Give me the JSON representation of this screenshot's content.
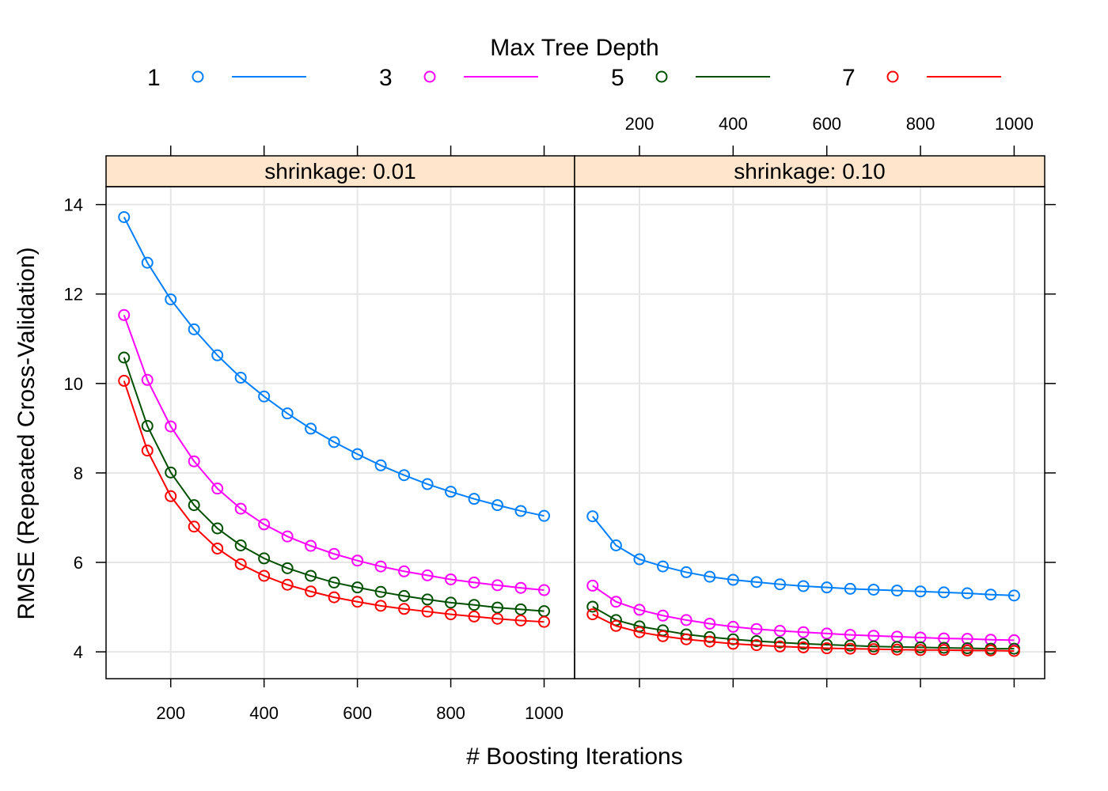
{
  "chart_data": {
    "type": "line",
    "xlabel": "# Boosting Iterations",
    "ylabel": "RMSE (Repeated Cross-Validation)",
    "legend_title": "Max Tree Depth",
    "legend_position": "top",
    "grid": true,
    "xlim": [
      75,
      1050
    ],
    "ylim": [
      3.4,
      14.4
    ],
    "x_ticks": [
      200,
      400,
      600,
      800,
      1000
    ],
    "y_ticks": [
      4,
      6,
      8,
      10,
      12,
      14
    ],
    "x": [
      100,
      150,
      200,
      250,
      300,
      350,
      400,
      450,
      500,
      550,
      600,
      650,
      700,
      750,
      800,
      850,
      900,
      950,
      1000
    ],
    "series_colors": {
      "1": "#0080ff",
      "3": "#ff00ff",
      "5": "#005000",
      "7": "#ff0000"
    },
    "panels": [
      {
        "label": "shrinkage: 0.01",
        "series": [
          {
            "name": "1",
            "values": [
              13.72,
              12.7,
              11.88,
              11.21,
              10.63,
              10.13,
              9.71,
              9.33,
              8.99,
              8.69,
              8.42,
              8.17,
              7.95,
              7.75,
              7.58,
              7.42,
              7.28,
              7.15,
              7.04
            ]
          },
          {
            "name": "3",
            "values": [
              11.53,
              10.08,
              9.04,
              8.26,
              7.65,
              7.2,
              6.85,
              6.58,
              6.37,
              6.19,
              6.04,
              5.91,
              5.8,
              5.71,
              5.62,
              5.55,
              5.49,
              5.43,
              5.38
            ]
          },
          {
            "name": "5",
            "values": [
              10.58,
              9.05,
              8.01,
              7.28,
              6.76,
              6.38,
              6.09,
              5.87,
              5.7,
              5.55,
              5.44,
              5.34,
              5.25,
              5.17,
              5.1,
              5.05,
              4.99,
              4.95,
              4.91
            ]
          },
          {
            "name": "7",
            "values": [
              10.06,
              8.5,
              7.48,
              6.8,
              6.31,
              5.96,
              5.7,
              5.5,
              5.35,
              5.22,
              5.12,
              5.03,
              4.96,
              4.9,
              4.84,
              4.79,
              4.74,
              4.7,
              4.67
            ]
          }
        ]
      },
      {
        "label": "shrinkage: 0.10",
        "series": [
          {
            "name": "1",
            "values": [
              7.03,
              6.38,
              6.07,
              5.91,
              5.78,
              5.68,
              5.61,
              5.56,
              5.51,
              5.47,
              5.44,
              5.41,
              5.39,
              5.37,
              5.35,
              5.33,
              5.31,
              5.28,
              5.26
            ]
          },
          {
            "name": "3",
            "values": [
              5.48,
              5.12,
              4.94,
              4.81,
              4.71,
              4.63,
              4.56,
              4.51,
              4.47,
              4.44,
              4.41,
              4.38,
              4.36,
              4.34,
              4.32,
              4.3,
              4.29,
              4.27,
              4.26
            ]
          },
          {
            "name": "5",
            "values": [
              5.01,
              4.71,
              4.57,
              4.48,
              4.39,
              4.33,
              4.28,
              4.24,
              4.21,
              4.18,
              4.16,
              4.14,
              4.12,
              4.11,
              4.1,
              4.09,
              4.08,
              4.07,
              4.07
            ]
          },
          {
            "name": "7",
            "values": [
              4.84,
              4.58,
              4.44,
              4.35,
              4.28,
              4.23,
              4.18,
              4.15,
              4.12,
              4.1,
              4.08,
              4.07,
              4.06,
              4.05,
              4.04,
              4.04,
              4.03,
              4.03,
              4.02
            ]
          }
        ]
      }
    ]
  }
}
